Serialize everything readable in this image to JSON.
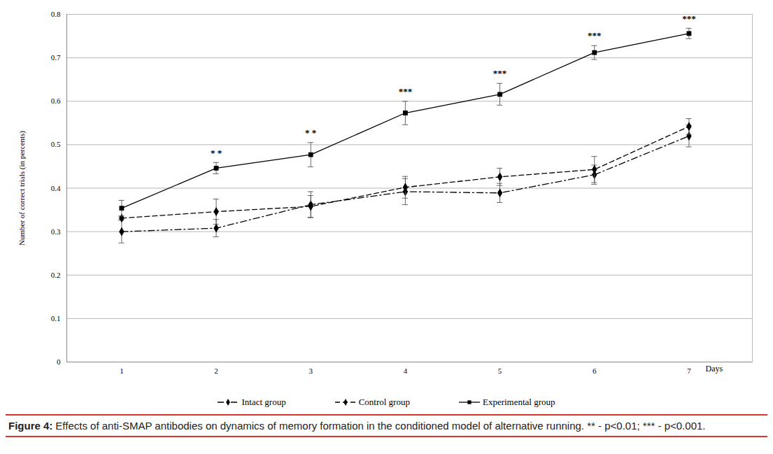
{
  "chart_data": {
    "type": "line",
    "y_label": "Number of correct trials (in percents)",
    "x_label": "Days",
    "x": [
      1,
      2,
      3,
      4,
      5,
      6,
      7
    ],
    "series": [
      {
        "name": "Intact group",
        "color": "#000000",
        "line_style": "dashdot",
        "marker": "diamond",
        "values": [
          0.3,
          0.308,
          0.362,
          0.392,
          0.389,
          0.431,
          0.52
        ],
        "errors": [
          0.026,
          0.02,
          0.03,
          0.03,
          0.022,
          0.022,
          0.025
        ]
      },
      {
        "name": "Control group",
        "color": "#000000",
        "line_style": "dashed",
        "marker": "diamond",
        "values": [
          0.331,
          0.346,
          0.358,
          0.402,
          0.426,
          0.443,
          0.542
        ],
        "errors": [
          0.003,
          0.029,
          0.025,
          0.025,
          0.02,
          0.03,
          0.018
        ]
      },
      {
        "name": "Experimental group",
        "color": "#000000",
        "line_style": "solid",
        "marker": "square",
        "values": [
          0.354,
          0.446,
          0.477,
          0.573,
          0.616,
          0.712,
          0.756
        ],
        "errors": [
          0.018,
          0.013,
          0.028,
          0.027,
          0.025,
          0.016,
          0.012
        ]
      }
    ],
    "annotations": [
      {
        "x": 2,
        "text": "* *"
      },
      {
        "x": 3,
        "text": "* *"
      },
      {
        "x": 4,
        "text": "***"
      },
      {
        "x": 5,
        "text": "***"
      },
      {
        "x": 6,
        "text": "***"
      },
      {
        "x": 7,
        "text": "***"
      }
    ],
    "xlim": [
      0.42,
      7.67
    ],
    "xticks": [
      1,
      2,
      3,
      4,
      5,
      6,
      7
    ],
    "ylim": [
      0,
      0.8
    ],
    "yticks": [
      0,
      0.1,
      0.2,
      0.3,
      0.4,
      0.5,
      0.6,
      0.7,
      0.8
    ],
    "grid": true,
    "legend": "bottom",
    "caption_label": "Figure 4:",
    "caption": "Effects of anti-SMAP antibodies on dynamics of memory formation in the conditioned model of alternative running. ** - p<0.01; *** - p<0.001."
  }
}
